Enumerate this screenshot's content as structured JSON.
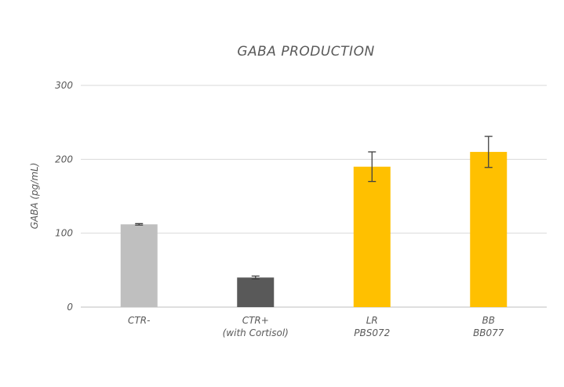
{
  "chart_data": {
    "type": "bar",
    "title": "GABA PRODUCTION",
    "ylabel": "GABA (pg/mL)",
    "xlabel": "",
    "ylim": [
      0,
      300
    ],
    "yticks": [
      0,
      100,
      200,
      300
    ],
    "grid": true,
    "categories": [
      {
        "lines": [
          "CTR-"
        ]
      },
      {
        "lines": [
          "CTR+",
          "(with Cortisol)"
        ]
      },
      {
        "lines": [
          "LR",
          "PBS072"
        ]
      },
      {
        "lines": [
          "BB",
          "BB077"
        ]
      }
    ],
    "values": [
      112,
      40,
      190,
      210
    ],
    "errors": [
      1,
      2,
      20,
      21
    ],
    "colors": [
      "#bfbfbf",
      "#595959",
      "#ffc000",
      "#ffc000"
    ]
  }
}
